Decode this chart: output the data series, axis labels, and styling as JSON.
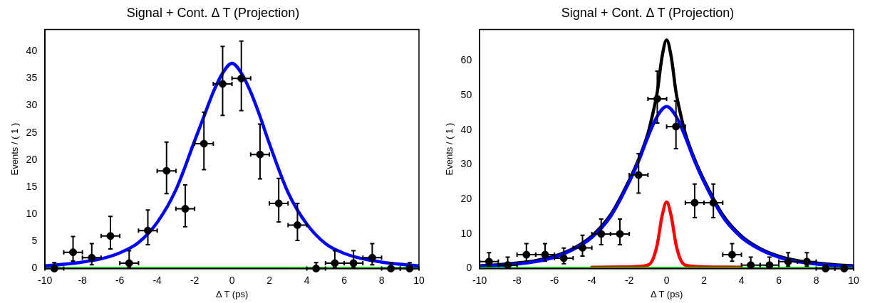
{
  "chart_data": [
    {
      "type": "scatter",
      "title": "Signal + Cont. Δ T (Projection)",
      "xlabel": "Δ T (ps)",
      "ylabel": "Events / ( 1 )",
      "xlim": [
        -10,
        10
      ],
      "xticks": [
        -10,
        -8,
        -6,
        -4,
        -2,
        0,
        2,
        4,
        6,
        8,
        10
      ],
      "ylim": [
        0,
        44
      ],
      "yticks": [
        0,
        5,
        10,
        15,
        20,
        25,
        30,
        35,
        40
      ],
      "grid": false,
      "legend": false,
      "series": [
        {
          "type": "line",
          "color": "#00cc00",
          "marker": "none",
          "x": [
            -10,
            10
          ],
          "values": [
            0,
            0
          ]
        },
        {
          "type": "line",
          "color": "#0000ff",
          "marker": "none",
          "x": [
            -10,
            -9,
            -8,
            -7,
            -6,
            -5,
            -4,
            -3,
            -2,
            -1.5,
            -1,
            -0.5,
            0,
            0.5,
            1,
            1.5,
            2,
            3,
            4,
            5,
            6,
            7,
            8,
            9,
            10
          ],
          "values": [
            0.5,
            0.8,
            1.2,
            1.8,
            2.9,
            4.8,
            8.5,
            14.5,
            23.5,
            28,
            32.5,
            36,
            37.8,
            36,
            32.5,
            28,
            23,
            14,
            8.2,
            4.6,
            2.8,
            1.8,
            1.2,
            0.8,
            0.5
          ]
        },
        {
          "type": "scatter",
          "color": "#000000",
          "marker": "circle",
          "x": [
            -9.5,
            -8.5,
            -7.5,
            -6.5,
            -5.5,
            -4.5,
            -3.5,
            -2.5,
            -1.5,
            -0.5,
            0.5,
            1.5,
            2.5,
            3.5,
            4.5,
            5.5,
            6.5,
            7.5,
            8.5,
            9.5
          ],
          "values": [
            0,
            3,
            2,
            6,
            1,
            7,
            18,
            11,
            23,
            34,
            35,
            21,
            12,
            8,
            0,
            1,
            1,
            2,
            0,
            0
          ],
          "errors": [
            [
              0,
              1.1
            ],
            [
              1.4,
              5.9
            ],
            [
              0.7,
              4.6
            ],
            [
              3.6,
              9.6
            ],
            [
              0.2,
              3.3
            ],
            [
              4.4,
              10.8
            ],
            [
              13.8,
              23.3
            ],
            [
              7.7,
              15.4
            ],
            [
              18.2,
              28.8
            ],
            [
              28.2,
              40.9
            ],
            [
              29.1,
              41.9
            ],
            [
              16.5,
              26.6
            ],
            [
              8.6,
              16.6
            ],
            [
              5.2,
              12
            ],
            [
              0,
              1.1
            ],
            [
              0.2,
              3.3
            ],
            [
              0.2,
              3.3
            ],
            [
              0.7,
              4.6
            ],
            [
              0,
              1.1
            ],
            [
              0,
              1.1
            ]
          ],
          "xerrors": [
            0.5,
            0.5,
            0.5,
            0.5,
            0.5,
            0.5,
            0.5,
            0.5,
            0.5,
            0.5,
            0.5,
            0.5,
            0.5,
            0.5,
            0.5,
            0.5,
            0.5,
            0.5,
            0.5,
            0.5
          ]
        }
      ]
    },
    {
      "type": "scatter",
      "title": "Signal + Cont. Δ T (Projection)",
      "xlabel": "Δ T (ps)",
      "ylabel": "Events / ( 1 )",
      "xlim": [
        -10,
        10
      ],
      "xticks": [
        -10,
        -8,
        -6,
        -4,
        -2,
        0,
        2,
        4,
        6,
        8,
        10
      ],
      "ylim": [
        0,
        69
      ],
      "yticks": [
        0,
        10,
        20,
        30,
        40,
        50,
        60
      ],
      "grid": false,
      "legend": false,
      "series": [
        {
          "type": "line",
          "color": "#000000",
          "marker": "none",
          "x": [
            -10,
            -9,
            -8,
            -7,
            -6,
            -5,
            -4,
            -3,
            -2,
            -1.5,
            -1,
            -0.75,
            -0.5,
            -0.25,
            0,
            0.25,
            0.5,
            0.75,
            1,
            1.5,
            2,
            3,
            4,
            5,
            6,
            7,
            8,
            9,
            10
          ],
          "values": [
            0.8,
            1.1,
            1.6,
            2.3,
            3.6,
            5.8,
            9.4,
            15.5,
            25.5,
            31.5,
            39,
            44.5,
            51,
            61,
            66,
            61,
            51,
            44.5,
            39,
            31.5,
            25.5,
            15.5,
            9.4,
            5.8,
            3.6,
            2.3,
            1.6,
            1.1,
            0.8
          ]
        },
        {
          "type": "line",
          "color": "#0000ff",
          "marker": "none",
          "x": [
            -10,
            -9,
            -8,
            -7,
            -6,
            -5,
            -4,
            -3,
            -2,
            -1.5,
            -1,
            -0.5,
            0,
            0.5,
            1,
            1.5,
            2,
            3,
            4,
            5,
            6,
            7,
            8,
            9,
            10
          ],
          "values": [
            0.6,
            0.9,
            1.3,
            2,
            3.3,
            5.5,
            9,
            15,
            25,
            31,
            38,
            44,
            46.8,
            44,
            38,
            31,
            25,
            15,
            9,
            5.5,
            3.3,
            2,
            1.3,
            0.9,
            0.6
          ]
        },
        {
          "type": "line",
          "color": "#ff0000",
          "marker": "none",
          "x": [
            -4,
            -2,
            -1,
            -0.75,
            -0.5,
            -0.25,
            0,
            0.25,
            0.5,
            0.75,
            1,
            2,
            4
          ],
          "values": [
            0.4,
            0.5,
            1,
            2.5,
            7,
            15,
            19.2,
            15,
            7,
            2.5,
            1,
            0.5,
            0.4
          ]
        },
        {
          "type": "line",
          "color": "#00cc00",
          "marker": "none",
          "x": [
            -10,
            10
          ],
          "values": [
            0,
            0
          ]
        },
        {
          "type": "scatter",
          "color": "#000000",
          "marker": "circle",
          "x": [
            -9.5,
            -8.5,
            -7.5,
            -6.5,
            -5.5,
            -4.5,
            -3.5,
            -2.5,
            -1.5,
            -0.5,
            0.5,
            1.5,
            2.5,
            3.5,
            4.5,
            5.5,
            6.5,
            7.5,
            8.5,
            9.5
          ],
          "values": [
            2,
            1,
            4,
            4,
            3,
            6,
            10,
            10,
            27,
            49,
            41,
            19,
            19,
            4,
            1,
            1,
            2,
            2,
            0,
            0
          ],
          "errors": [
            [
              0.7,
              4.6
            ],
            [
              0.2,
              3.3
            ],
            [
              2.1,
              7.2
            ],
            [
              2.1,
              7.2
            ],
            [
              1.4,
              5.9
            ],
            [
              3.6,
              9.6
            ],
            [
              6.9,
              14.3
            ],
            [
              6.9,
              14.3
            ],
            [
              21.8,
              33.2
            ],
            [
              42,
              57
            ],
            [
              34.6,
              48.4
            ],
            [
              14.7,
              24.4
            ],
            [
              14.7,
              24.4
            ],
            [
              2.1,
              7.2
            ],
            [
              0.2,
              3.3
            ],
            [
              0.2,
              3.3
            ],
            [
              0.7,
              4.6
            ],
            [
              0.7,
              4.6
            ],
            [
              0,
              1.1
            ],
            [
              0,
              1.1
            ]
          ],
          "xerrors": [
            0.5,
            0.5,
            0.5,
            0.5,
            0.5,
            0.5,
            0.5,
            0.5,
            0.5,
            0.5,
            0.5,
            0.5,
            0.5,
            0.5,
            0.5,
            0.5,
            0.5,
            0.5,
            0.5,
            0.5
          ]
        }
      ]
    }
  ]
}
